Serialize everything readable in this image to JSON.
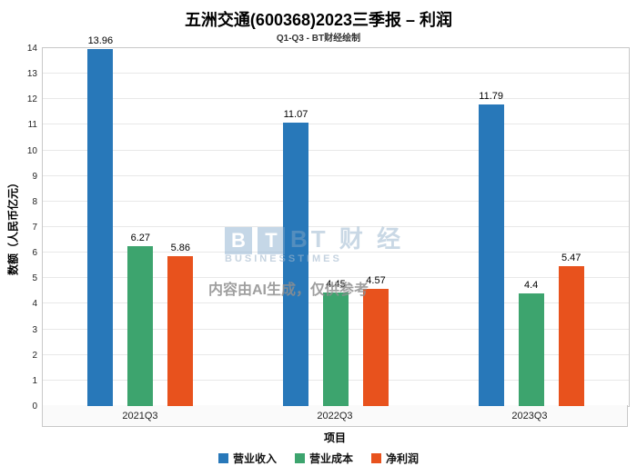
{
  "header": {
    "title": "五洲交通(600368)2023三季报 – 利润",
    "subtitle": "Q1-Q3 - BT财经绘制"
  },
  "watermark": {
    "logo_b": "B",
    "logo_t": "T",
    "logo_text": "BT 财 经",
    "logo_sub": "BUSINESSTIMES",
    "notice": "内容由AI生成，仅供参考"
  },
  "chart_data": {
    "type": "bar",
    "title": "五洲交通(600368)2023三季报 – 利润",
    "subtitle": "Q1-Q3 - BT财经绘制",
    "categories": [
      "2021Q3",
      "2022Q3",
      "2023Q3"
    ],
    "series": [
      {
        "name": "营业收入",
        "color": "#2878b9",
        "values": [
          13.96,
          11.07,
          11.79
        ]
      },
      {
        "name": "营业成本",
        "color": "#3da46e",
        "values": [
          6.27,
          4.45,
          4.4
        ]
      },
      {
        "name": "净利润",
        "color": "#e8521d",
        "values": [
          5.86,
          4.57,
          5.47
        ]
      }
    ],
    "xlabel": "项目",
    "ylabel": "数额（人民币亿元）",
    "ylim": [
      0,
      14
    ],
    "ytick_step": 1,
    "grid": true,
    "legend_position": "bottom"
  }
}
